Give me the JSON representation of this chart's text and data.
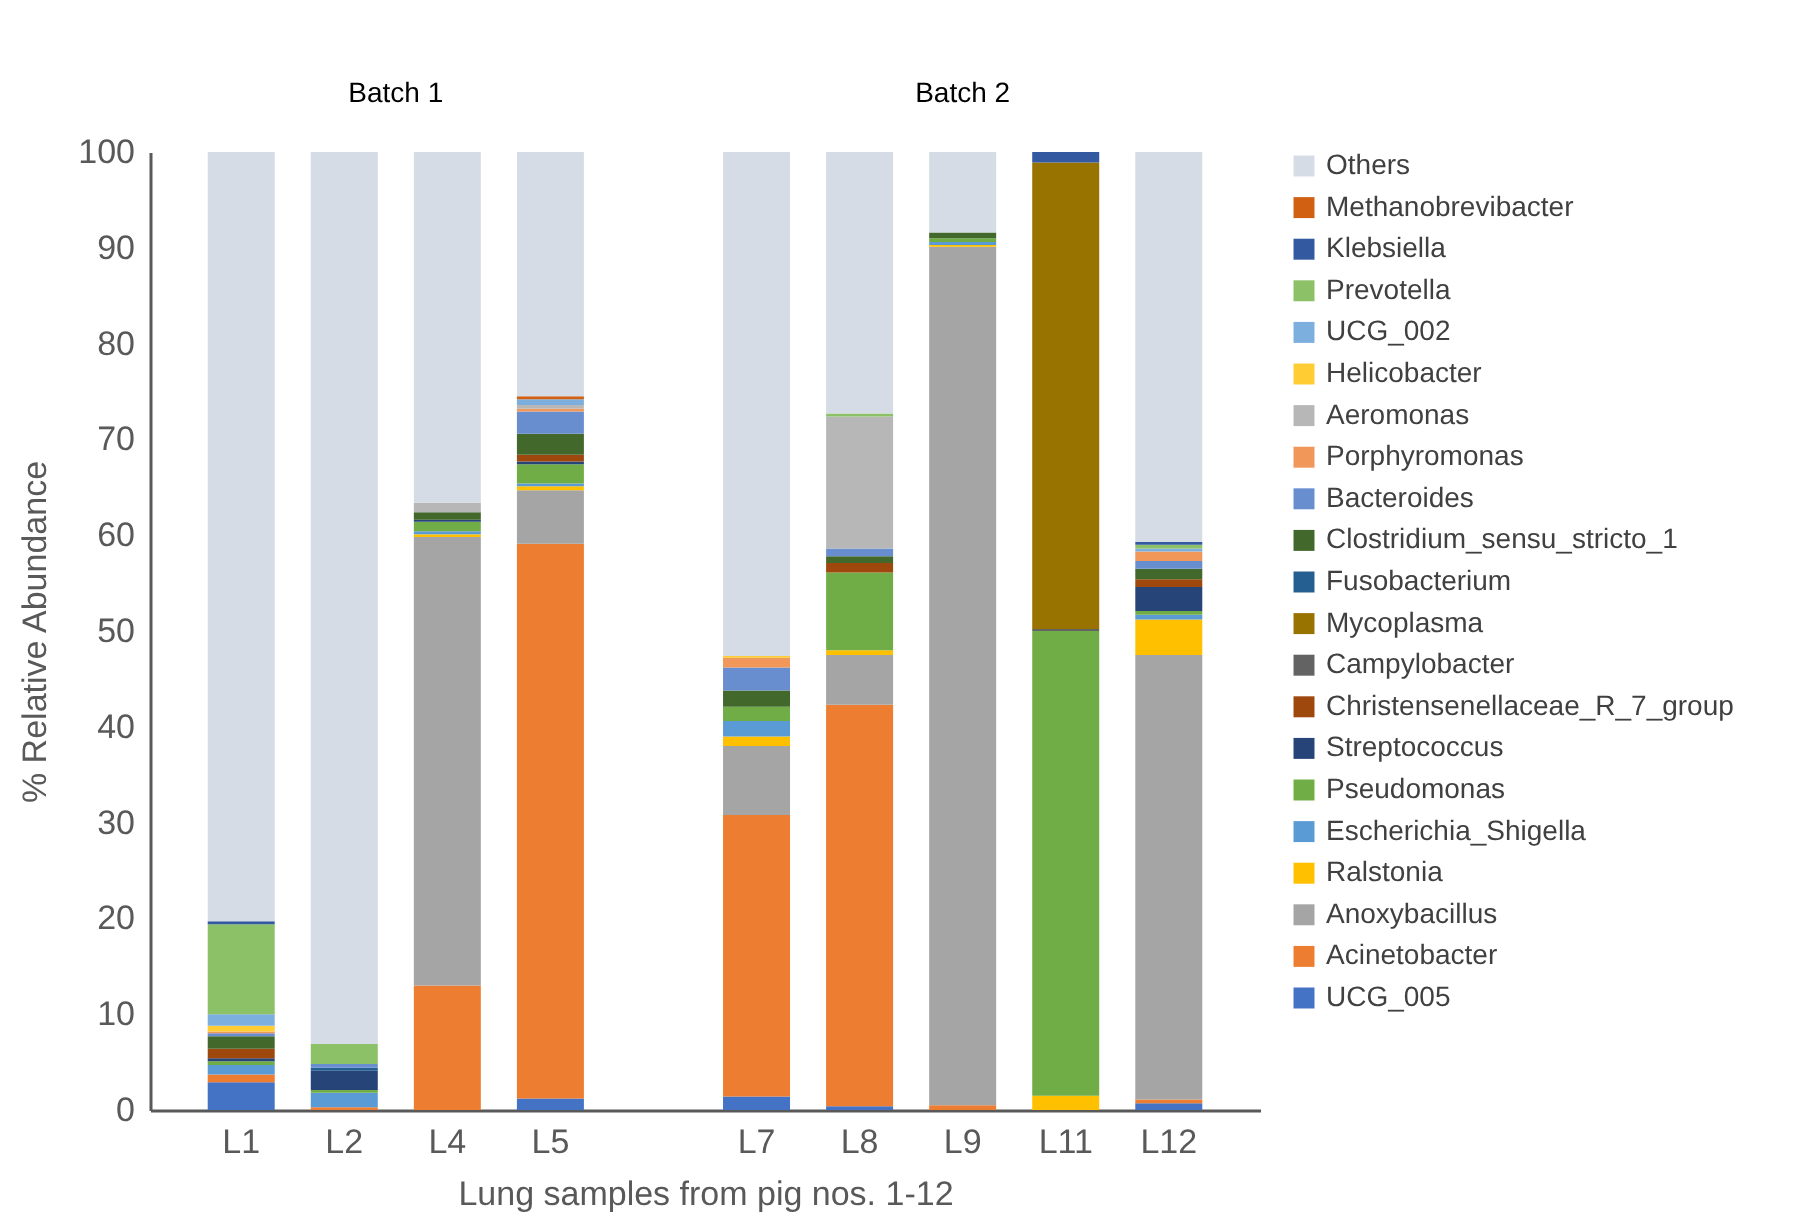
{
  "chart_data": {
    "type": "bar",
    "stacked": true,
    "xlabel": "Lung samples from pig nos. 1-12",
    "ylabel": "% Relative Abundance",
    "annotations": [
      "Batch 1",
      "Batch 2"
    ],
    "legend": "right",
    "ylim": [
      0,
      100
    ],
    "yticks": [
      0,
      10,
      20,
      30,
      40,
      50,
      60,
      70,
      80,
      90,
      100
    ],
    "categories": [
      "L1",
      "L2",
      "L4",
      "L5",
      null,
      "L7",
      "L8",
      "L9",
      "L11",
      "L12"
    ],
    "series": [
      {
        "name": "UCG_005",
        "color": "#4472c4",
        "values": [
          2.9,
          null,
          null,
          1.2,
          null,
          1.4,
          0.4,
          null,
          null,
          0.7
        ]
      },
      {
        "name": "Acinetobacter",
        "color": "#ed7d31",
        "values": [
          0.8,
          0.3,
          13.0,
          57.9,
          null,
          29.4,
          41.9,
          0.5,
          null,
          0.4
        ]
      },
      {
        "name": "Anoxybacillus",
        "color": "#a5a5a5",
        "values": [
          null,
          null,
          46.8,
          5.6,
          null,
          7.2,
          5.2,
          89.6,
          null,
          46.4
        ]
      },
      {
        "name": "Ralstonia",
        "color": "#ffc000",
        "values": [
          null,
          null,
          0.3,
          0.4,
          null,
          1.0,
          0.5,
          0.2,
          1.5,
          3.7
        ]
      },
      {
        "name": "Escherichia_Shigella",
        "color": "#5b9bd5",
        "values": [
          1.0,
          1.5,
          0.3,
          0.3,
          null,
          1.6,
          null,
          0.3,
          null,
          0.5
        ]
      },
      {
        "name": "Pseudomonas",
        "color": "#70ad47",
        "values": [
          0.4,
          0.3,
          1.0,
          2.0,
          null,
          1.5,
          8.1,
          0.4,
          48.5,
          0.4
        ]
      },
      {
        "name": "Streptococcus",
        "color": "#264478",
        "values": [
          0.3,
          2.0,
          0.2,
          0.3,
          null,
          null,
          null,
          null,
          null,
          2.5
        ]
      },
      {
        "name": "Christensenellaceae_R_7_group",
        "color": "#9e480e",
        "values": [
          1.0,
          null,
          null,
          0.7,
          null,
          null,
          1.0,
          null,
          null,
          0.8
        ]
      },
      {
        "name": "Campylobacter",
        "color": "#636363",
        "values": [
          null,
          null,
          null,
          null,
          null,
          null,
          null,
          null,
          0.2,
          null
        ]
      },
      {
        "name": "Mycoplasma",
        "color": "#997300",
        "values": [
          null,
          null,
          null,
          null,
          null,
          null,
          null,
          null,
          48.7,
          null
        ]
      },
      {
        "name": "Fusobacterium",
        "color": "#255e91",
        "values": [
          null,
          0.3,
          null,
          null,
          null,
          null,
          null,
          null,
          null,
          null
        ]
      },
      {
        "name": "Clostridium_sensu_stricto_1",
        "color": "#43682b",
        "values": [
          1.3,
          null,
          0.8,
          2.2,
          null,
          1.7,
          0.7,
          0.6,
          null,
          1.1
        ]
      },
      {
        "name": "Bacteroides",
        "color": "#698ed0",
        "values": [
          0.3,
          0.4,
          null,
          2.3,
          null,
          2.4,
          0.8,
          null,
          null,
          0.8
        ]
      },
      {
        "name": "Porphyromonas",
        "color": "#f1975a",
        "values": [
          0.2,
          null,
          null,
          0.3,
          null,
          1.0,
          null,
          null,
          null,
          1.0
        ]
      },
      {
        "name": "Aeromonas",
        "color": "#b7b7b7",
        "values": [
          null,
          null,
          1.0,
          0.4,
          null,
          null,
          13.8,
          null,
          null,
          null
        ]
      },
      {
        "name": "Helicobacter",
        "color": "#ffcd33",
        "values": [
          0.6,
          null,
          null,
          null,
          null,
          0.2,
          null,
          null,
          null,
          null
        ]
      },
      {
        "name": "UCG_002",
        "color": "#7cafdd",
        "values": [
          1.2,
          null,
          null,
          0.6,
          null,
          null,
          null,
          null,
          null,
          0.3
        ]
      },
      {
        "name": "Prevotella",
        "color": "#8cc168",
        "values": [
          9.4,
          2.1,
          null,
          null,
          null,
          null,
          0.3,
          null,
          null,
          0.4
        ]
      },
      {
        "name": "Klebsiella",
        "color": "#335aa1",
        "values": [
          0.3,
          null,
          null,
          null,
          null,
          null,
          null,
          null,
          1.1,
          0.3
        ]
      },
      {
        "name": "Methanobrevibacter",
        "color": "#d26012",
        "values": [
          null,
          null,
          null,
          0.3,
          null,
          null,
          null,
          null,
          null,
          null
        ]
      },
      {
        "name": "Others",
        "color": "#d6dce5",
        "values": [
          80.3,
          93.1,
          36.6,
          25.5,
          null,
          52.6,
          27.3,
          8.4,
          null,
          40.7
        ]
      }
    ]
  }
}
